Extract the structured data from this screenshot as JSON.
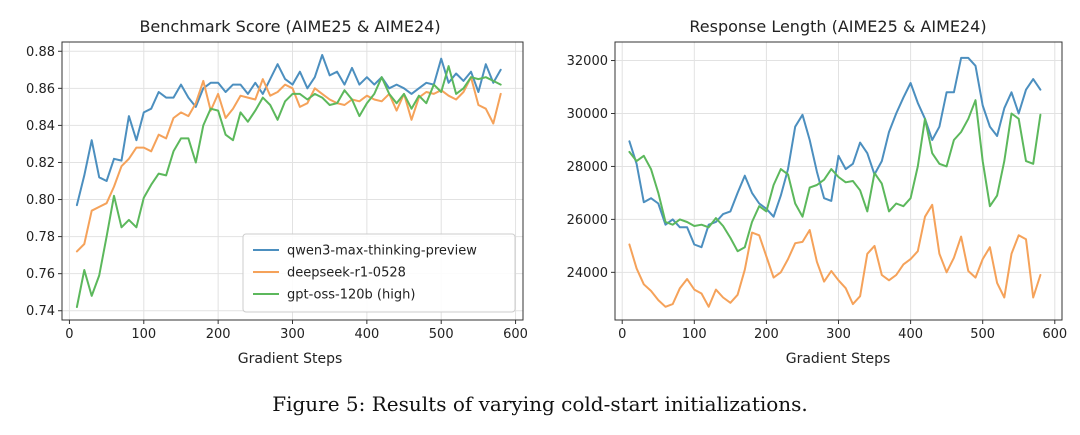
{
  "colors": {
    "qwen": "#4c8fbf",
    "deepseek": "#f5a25a",
    "gpt": "#5cb85c"
  },
  "caption": "Figure 5: Results of varying cold-start initializations.",
  "chart_data": [
    {
      "type": "line",
      "title": "Benchmark Score (AIME25 & AIME24)",
      "xlabel": "Gradient Steps",
      "ylabel": "",
      "xlim": [
        -10,
        610
      ],
      "ylim": [
        0.735,
        0.885
      ],
      "xticks": [
        "0",
        "100",
        "200",
        "300",
        "400",
        "500",
        "600"
      ],
      "yticks": [
        "0.74",
        "0.76",
        "0.78",
        "0.80",
        "0.82",
        "0.84",
        "0.86",
        "0.88"
      ],
      "legend": "lower-right",
      "x": [
        10,
        20,
        30,
        40,
        50,
        60,
        70,
        80,
        90,
        100,
        110,
        120,
        130,
        140,
        150,
        160,
        170,
        180,
        190,
        200,
        210,
        220,
        230,
        240,
        250,
        260,
        270,
        280,
        290,
        300,
        310,
        320,
        330,
        340,
        350,
        360,
        370,
        380,
        390,
        400,
        410,
        420,
        430,
        440,
        450,
        460,
        470,
        480,
        490,
        500,
        510,
        520,
        530,
        540,
        550,
        560,
        570,
        580
      ],
      "series": [
        {
          "name": "qwen3-max-thinking-preview",
          "color_key": "qwen",
          "values": [
            0.797,
            0.813,
            0.832,
            0.812,
            0.81,
            0.822,
            0.821,
            0.845,
            0.832,
            0.847,
            0.849,
            0.858,
            0.855,
            0.855,
            0.862,
            0.855,
            0.85,
            0.86,
            0.863,
            0.863,
            0.858,
            0.862,
            0.862,
            0.857,
            0.863,
            0.857,
            0.865,
            0.873,
            0.865,
            0.862,
            0.869,
            0.86,
            0.866,
            0.878,
            0.867,
            0.869,
            0.862,
            0.871,
            0.862,
            0.866,
            0.862,
            0.866,
            0.86,
            0.862,
            0.86,
            0.857,
            0.86,
            0.863,
            0.862,
            0.876,
            0.863,
            0.868,
            0.864,
            0.869,
            0.858,
            0.873,
            0.863,
            0.87
          ]
        },
        {
          "name": "deepseek-r1-0528",
          "color_key": "deepseek",
          "values": [
            0.772,
            0.776,
            0.794,
            0.796,
            0.798,
            0.807,
            0.818,
            0.822,
            0.828,
            0.828,
            0.826,
            0.835,
            0.833,
            0.844,
            0.847,
            0.845,
            0.852,
            0.864,
            0.848,
            0.857,
            0.844,
            0.849,
            0.856,
            0.855,
            0.854,
            0.865,
            0.856,
            0.858,
            0.862,
            0.86,
            0.85,
            0.852,
            0.86,
            0.857,
            0.854,
            0.852,
            0.851,
            0.854,
            0.853,
            0.856,
            0.854,
            0.853,
            0.857,
            0.848,
            0.857,
            0.843,
            0.855,
            0.858,
            0.857,
            0.859,
            0.856,
            0.854,
            0.858,
            0.866,
            0.851,
            0.849,
            0.841,
            0.857
          ]
        },
        {
          "name": "gpt-oss-120b (high)",
          "color_key": "gpt",
          "values": [
            0.742,
            0.762,
            0.748,
            0.759,
            0.78,
            0.802,
            0.785,
            0.789,
            0.785,
            0.801,
            0.808,
            0.814,
            0.813,
            0.826,
            0.833,
            0.833,
            0.82,
            0.84,
            0.849,
            0.848,
            0.835,
            0.832,
            0.847,
            0.842,
            0.848,
            0.855,
            0.851,
            0.843,
            0.853,
            0.857,
            0.857,
            0.854,
            0.857,
            0.855,
            0.851,
            0.852,
            0.859,
            0.854,
            0.845,
            0.852,
            0.857,
            0.866,
            0.857,
            0.852,
            0.857,
            0.849,
            0.856,
            0.852,
            0.862,
            0.858,
            0.872,
            0.857,
            0.86,
            0.866,
            0.865,
            0.866,
            0.864,
            0.862
          ]
        }
      ]
    },
    {
      "type": "line",
      "title": "Response Length (AIME25 & AIME24)",
      "xlabel": "Gradient Steps",
      "ylabel": "",
      "xlim": [
        -10,
        610
      ],
      "ylim": [
        22200,
        32700
      ],
      "xticks": [
        "0",
        "100",
        "200",
        "300",
        "400",
        "500",
        "600"
      ],
      "yticks": [
        "24000",
        "26000",
        "28000",
        "30000",
        "32000"
      ],
      "x": [
        10,
        20,
        30,
        40,
        50,
        60,
        70,
        80,
        90,
        100,
        110,
        120,
        130,
        140,
        150,
        160,
        170,
        180,
        190,
        200,
        210,
        220,
        230,
        240,
        250,
        260,
        270,
        280,
        290,
        300,
        310,
        320,
        330,
        340,
        350,
        360,
        370,
        380,
        390,
        400,
        410,
        420,
        430,
        440,
        450,
        460,
        470,
        480,
        490,
        500,
        510,
        520,
        530,
        540,
        550,
        560,
        570,
        580
      ],
      "series": [
        {
          "name": "qwen3-max-thinking-preview",
          "color_key": "qwen",
          "values": [
            28950,
            28100,
            26650,
            26800,
            26600,
            25800,
            26000,
            25700,
            25700,
            25050,
            24950,
            25800,
            25900,
            26200,
            26300,
            27000,
            27650,
            27000,
            26600,
            26400,
            26100,
            26900,
            27900,
            29500,
            29950,
            29000,
            27800,
            26800,
            26700,
            28400,
            27900,
            28100,
            28900,
            28500,
            27700,
            28200,
            29300,
            30000,
            30600,
            31150,
            30400,
            29800,
            29000,
            29500,
            30800,
            30800,
            32100,
            32100,
            31800,
            30300,
            29500,
            29150,
            30200,
            30800,
            30000,
            30900,
            31300,
            30900
          ]
        },
        {
          "name": "deepseek-r1-0528",
          "color_key": "deepseek",
          "values": [
            25050,
            24150,
            23550,
            23300,
            22950,
            22700,
            22800,
            23400,
            23750,
            23350,
            23200,
            22700,
            23350,
            23050,
            22850,
            23150,
            24100,
            25500,
            25400,
            24600,
            23800,
            24000,
            24500,
            25100,
            25150,
            25600,
            24400,
            23650,
            24050,
            23700,
            23400,
            22800,
            23100,
            24700,
            25000,
            23900,
            23700,
            23900,
            24300,
            24500,
            24800,
            26100,
            26550,
            24700,
            24000,
            24550,
            25350,
            24050,
            23800,
            24500,
            24950,
            23600,
            23050,
            24700,
            25400,
            25250,
            23050,
            23900
          ]
        },
        {
          "name": "gpt-oss-120b (high)",
          "color_key": "gpt",
          "values": [
            28550,
            28200,
            28400,
            27900,
            27000,
            25900,
            25800,
            26000,
            25900,
            25750,
            25800,
            25700,
            26050,
            25750,
            25300,
            24800,
            24950,
            25900,
            26500,
            26300,
            27300,
            27900,
            27700,
            26600,
            26100,
            27200,
            27300,
            27500,
            27900,
            27600,
            27400,
            27450,
            27100,
            26300,
            27750,
            27350,
            26300,
            26600,
            26500,
            26800,
            28000,
            29800,
            28500,
            28100,
            28000,
            29000,
            29300,
            29800,
            30500,
            28200,
            26500,
            26900,
            28200,
            30000,
            29800,
            28200,
            28100,
            29950
          ]
        }
      ]
    }
  ]
}
